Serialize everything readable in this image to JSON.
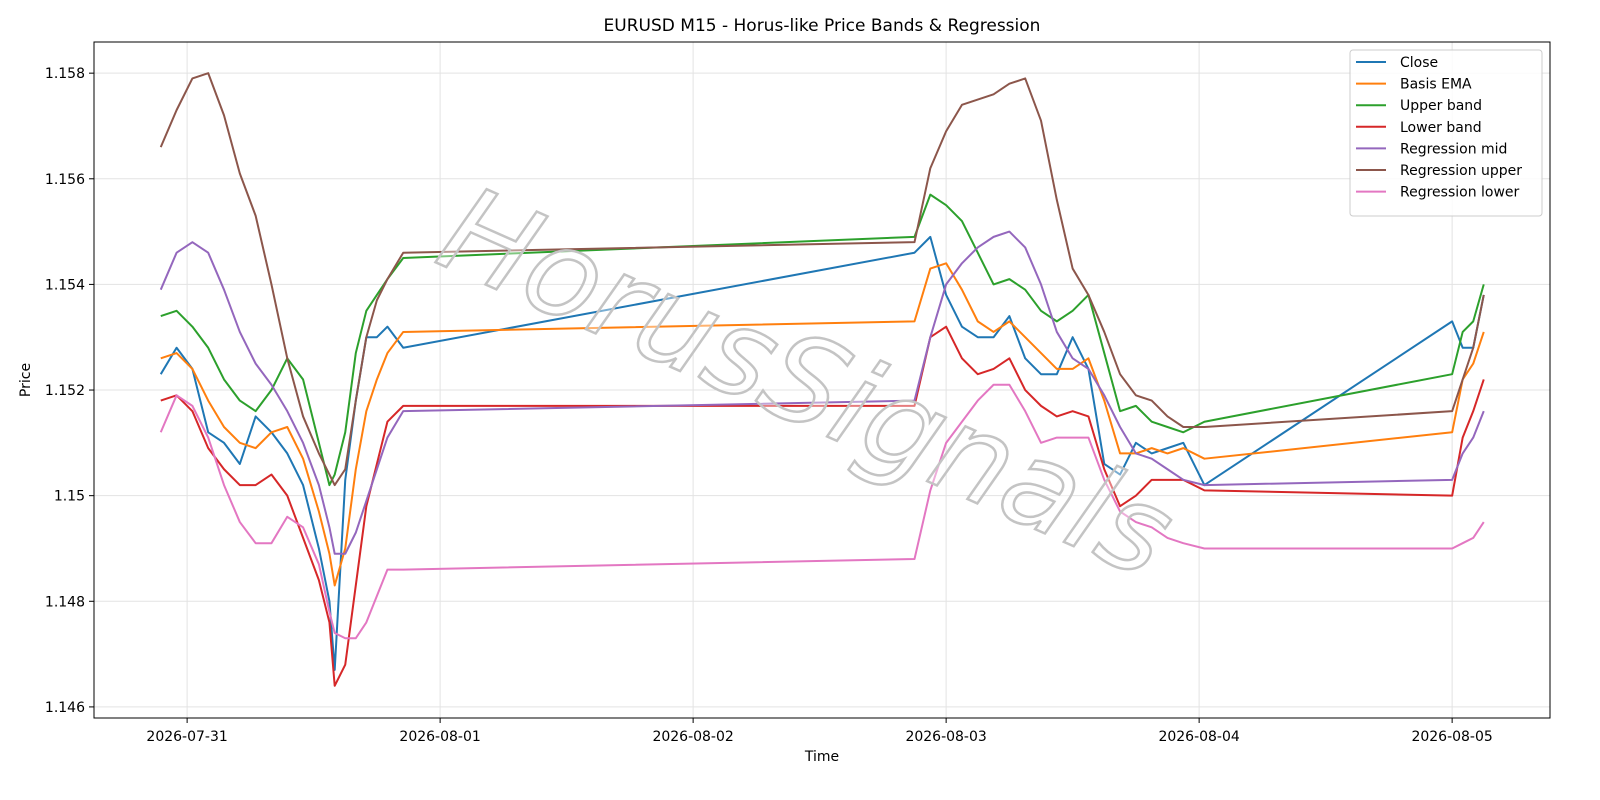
{
  "chart_data": {
    "type": "line",
    "title": "EURUSD M15 - Horus-like Price Bands & Regression",
    "xlabel": "Time",
    "ylabel": "Price",
    "watermark": "HorusSignals",
    "x": [
      "2026-07-30 21:30",
      "2026-07-30 23:00",
      "2026-07-31 00:30",
      "2026-07-31 02:00",
      "2026-07-31 03:30",
      "2026-07-31 05:00",
      "2026-07-31 06:30",
      "2026-07-31 08:00",
      "2026-07-31 09:30",
      "2026-07-31 11:00",
      "2026-07-31 12:30",
      "2026-07-31 13:30",
      "2026-07-31 14:00",
      "2026-07-31 15:00",
      "2026-07-31 16:00",
      "2026-07-31 17:00",
      "2026-07-31 18:00",
      "2026-07-31 19:00",
      "2026-07-31 20:30",
      "2026-08-02 21:00",
      "2026-08-02 22:30",
      "2026-08-03 00:00",
      "2026-08-03 01:30",
      "2026-08-03 03:00",
      "2026-08-03 04:30",
      "2026-08-03 06:00",
      "2026-08-03 07:30",
      "2026-08-03 09:00",
      "2026-08-03 10:30",
      "2026-08-03 12:00",
      "2026-08-03 13:30",
      "2026-08-03 15:00",
      "2026-08-03 16:30",
      "2026-08-03 18:00",
      "2026-08-03 19:30",
      "2026-08-03 21:00",
      "2026-08-03 22:30",
      "2026-08-04 00:30",
      "2026-08-05 00:00",
      "2026-08-05 01:00",
      "2026-08-05 02:00",
      "2026-08-05 03:00"
    ],
    "series": [
      {
        "name": "Close",
        "color": "#1f77b4",
        "values": [
          1.1523,
          1.1528,
          1.1524,
          1.1512,
          1.151,
          1.1506,
          1.1515,
          1.1512,
          1.1508,
          1.1502,
          1.149,
          1.148,
          1.1467,
          1.1503,
          1.1518,
          1.153,
          1.153,
          1.1532,
          1.1528,
          1.1546,
          1.1549,
          1.1538,
          1.1532,
          1.153,
          1.153,
          1.1534,
          1.1526,
          1.1523,
          1.1523,
          1.153,
          1.1524,
          1.1506,
          1.1504,
          1.151,
          1.1508,
          1.1509,
          1.151,
          1.1502,
          1.1533,
          1.1528,
          1.1528,
          1.1538
        ]
      },
      {
        "name": "Basis EMA",
        "color": "#ff7f0e",
        "values": [
          1.1526,
          1.1527,
          1.1524,
          1.1518,
          1.1513,
          1.151,
          1.1509,
          1.1512,
          1.1513,
          1.1507,
          1.1497,
          1.1489,
          1.1483,
          1.149,
          1.1505,
          1.1516,
          1.1522,
          1.1527,
          1.1531,
          1.1533,
          1.1543,
          1.1544,
          1.1539,
          1.1533,
          1.1531,
          1.1533,
          1.153,
          1.1527,
          1.1524,
          1.1524,
          1.1526,
          1.1518,
          1.1508,
          1.1508,
          1.1509,
          1.1508,
          1.1509,
          1.1507,
          1.1512,
          1.1522,
          1.1525,
          1.1531
        ]
      },
      {
        "name": "Upper band",
        "color": "#2ca02c",
        "values": [
          1.1534,
          1.1535,
          1.1532,
          1.1528,
          1.1522,
          1.1518,
          1.1516,
          1.152,
          1.1526,
          1.1522,
          1.151,
          1.1502,
          1.1504,
          1.1512,
          1.1527,
          1.1535,
          1.1538,
          1.1541,
          1.1545,
          1.1549,
          1.1557,
          1.1555,
          1.1552,
          1.1546,
          1.154,
          1.1541,
          1.1539,
          1.1535,
          1.1533,
          1.1535,
          1.1538,
          1.1527,
          1.1516,
          1.1517,
          1.1514,
          1.1513,
          1.1512,
          1.1514,
          1.1523,
          1.1531,
          1.1533,
          1.154
        ]
      },
      {
        "name": "Lower band",
        "color": "#d62728",
        "values": [
          1.1518,
          1.1519,
          1.1516,
          1.1509,
          1.1505,
          1.1502,
          1.1502,
          1.1504,
          1.15,
          1.1492,
          1.1484,
          1.1476,
          1.1464,
          1.1468,
          1.1483,
          1.1498,
          1.1506,
          1.1514,
          1.1517,
          1.1517,
          1.153,
          1.1532,
          1.1526,
          1.1523,
          1.1524,
          1.1526,
          1.152,
          1.1517,
          1.1515,
          1.1516,
          1.1515,
          1.1505,
          1.1498,
          1.15,
          1.1503,
          1.1503,
          1.1503,
          1.1501,
          1.15,
          1.1511,
          1.1516,
          1.1522
        ]
      },
      {
        "name": "Regression mid",
        "color": "#9467bd",
        "values": [
          1.1539,
          1.1546,
          1.1548,
          1.1546,
          1.1539,
          1.1531,
          1.1525,
          1.1521,
          1.1516,
          1.151,
          1.1502,
          1.1494,
          1.1489,
          1.1489,
          1.1493,
          1.1499,
          1.1505,
          1.1511,
          1.1516,
          1.1518,
          1.153,
          1.154,
          1.1544,
          1.1547,
          1.1549,
          1.155,
          1.1547,
          1.154,
          1.1531,
          1.1526,
          1.1524,
          1.1519,
          1.1513,
          1.1508,
          1.1507,
          1.1505,
          1.1503,
          1.1502,
          1.1503,
          1.1508,
          1.1511,
          1.1516
        ]
      },
      {
        "name": "Regression upper",
        "color": "#8c564b",
        "values": [
          1.1566,
          1.1573,
          1.1579,
          1.158,
          1.1572,
          1.1561,
          1.1553,
          1.154,
          1.1526,
          1.1515,
          1.1508,
          1.1504,
          1.1502,
          1.1505,
          1.1518,
          1.153,
          1.1537,
          1.1541,
          1.1546,
          1.1548,
          1.1562,
          1.1569,
          1.1574,
          1.1575,
          1.1576,
          1.1578,
          1.1579,
          1.1571,
          1.1556,
          1.1543,
          1.1538,
          1.1531,
          1.1523,
          1.1519,
          1.1518,
          1.1515,
          1.1513,
          1.1513,
          1.1516,
          1.1522,
          1.1528,
          1.1538
        ]
      },
      {
        "name": "Regression lower",
        "color": "#e377c2",
        "values": [
          1.1512,
          1.1519,
          1.1517,
          1.1511,
          1.1502,
          1.1495,
          1.1491,
          1.1491,
          1.1496,
          1.1494,
          1.1487,
          1.1478,
          1.1474,
          1.1473,
          1.1473,
          1.1476,
          1.1481,
          1.1486,
          1.1486,
          1.1488,
          1.1501,
          1.151,
          1.1514,
          1.1518,
          1.1521,
          1.1521,
          1.1516,
          1.151,
          1.1511,
          1.1511,
          1.1511,
          1.1503,
          1.1497,
          1.1495,
          1.1494,
          1.1492,
          1.1491,
          1.149,
          1.149,
          1.1491,
          1.1492,
          1.1495
        ]
      }
    ],
    "xlim": [
      "2026-07-30 15:10",
      "2026-08-05 09:17"
    ],
    "xticks": [
      "2026-07-31",
      "2026-08-01",
      "2026-08-02",
      "2026-08-03",
      "2026-08-04",
      "2026-08-05"
    ],
    "ylim": [
      1.14579,
      1.15859
    ],
    "yticks": [
      1.146,
      1.148,
      1.15,
      1.152,
      1.154,
      1.156,
      1.158
    ],
    "grid": true,
    "legend": "upper right"
  }
}
